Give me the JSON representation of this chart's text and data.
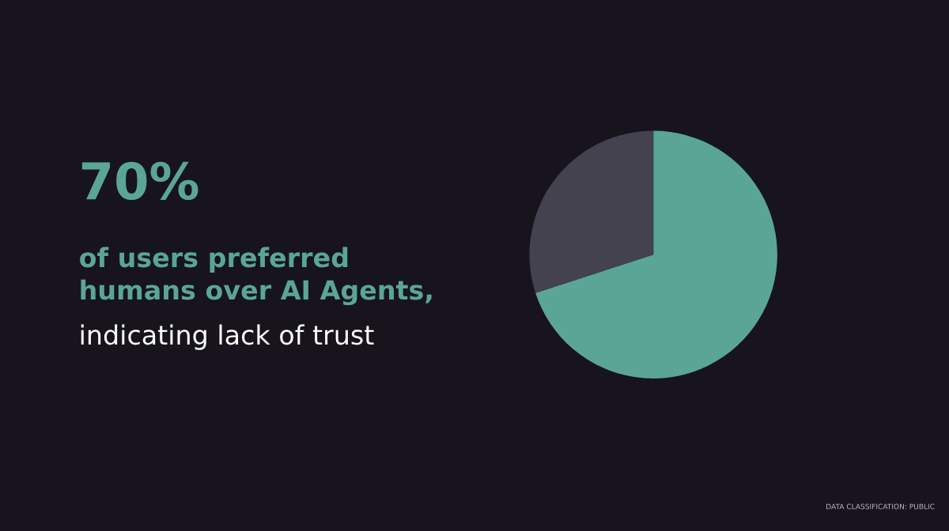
{
  "chart_data": {
    "type": "pie",
    "title": "70%",
    "subtitle": "of users preferred\nhumans over AI Agents,",
    "categories": [
      null,
      null
    ],
    "values": [
      70,
      30
    ],
    "colors": [
      "#5aa596",
      "#44424e"
    ],
    "annotations": [
      "indicating lack of trust",
      "DATA CLASSIFICATION: PUBLIC"
    ],
    "legend": false
  }
}
